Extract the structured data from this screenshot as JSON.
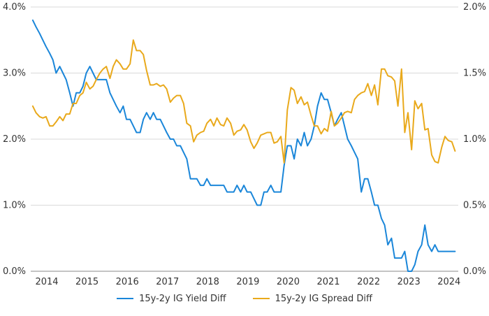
{
  "chart_data": {
    "type": "line",
    "title": "",
    "xlabel": "",
    "ylabel_left": "",
    "ylabel_right": "",
    "x_tick_labels": [
      "2014",
      "2015",
      "2016",
      "2017",
      "2018",
      "2019",
      "2020",
      "2021",
      "2022",
      "2023",
      "2024"
    ],
    "x_range": [
      2013.7,
      2024.33
    ],
    "y_left": {
      "range": [
        0.0,
        4.0
      ],
      "ticks": [
        0.0,
        1.0,
        2.0,
        3.0,
        4.0
      ],
      "tick_labels": [
        "0.0%",
        "1.0%",
        "2.0%",
        "3.0%",
        "4.0%"
      ]
    },
    "y_right": {
      "range": [
        0.0,
        2.0
      ],
      "ticks": [
        0.0,
        0.5,
        1.0,
        1.5,
        2.0
      ],
      "tick_labels": [
        "0.0%",
        "0.5%",
        "1.0%",
        "1.5%",
        "2.0%"
      ]
    },
    "grid": "horizontal",
    "legend_position": "bottom-center",
    "series": [
      {
        "name": "15y-2y IG Yield Diff",
        "axis": "left",
        "color": "#1a86d9",
        "points": [
          [
            2013.75,
            3.8
          ],
          [
            2013.83,
            3.7
          ],
          [
            2013.92,
            3.6
          ],
          [
            2014.0,
            3.5
          ],
          [
            2014.08,
            3.4
          ],
          [
            2014.17,
            3.3
          ],
          [
            2014.25,
            3.2
          ],
          [
            2014.33,
            3.0
          ],
          [
            2014.42,
            3.1
          ],
          [
            2014.5,
            3.0
          ],
          [
            2014.58,
            2.9
          ],
          [
            2014.67,
            2.7
          ],
          [
            2014.75,
            2.5
          ],
          [
            2014.83,
            2.7
          ],
          [
            2014.92,
            2.7
          ],
          [
            2015.0,
            2.8
          ],
          [
            2015.08,
            3.0
          ],
          [
            2015.17,
            3.1
          ],
          [
            2015.25,
            3.0
          ],
          [
            2015.33,
            2.9
          ],
          [
            2015.42,
            2.9
          ],
          [
            2015.5,
            2.9
          ],
          [
            2015.58,
            2.9
          ],
          [
            2015.67,
            2.7
          ],
          [
            2015.75,
            2.6
          ],
          [
            2015.83,
            2.5
          ],
          [
            2015.92,
            2.4
          ],
          [
            2016.0,
            2.5
          ],
          [
            2016.08,
            2.3
          ],
          [
            2016.17,
            2.3
          ],
          [
            2016.25,
            2.2
          ],
          [
            2016.33,
            2.1
          ],
          [
            2016.42,
            2.1
          ],
          [
            2016.5,
            2.3
          ],
          [
            2016.58,
            2.4
          ],
          [
            2016.67,
            2.3
          ],
          [
            2016.75,
            2.4
          ],
          [
            2016.83,
            2.3
          ],
          [
            2016.92,
            2.3
          ],
          [
            2017.0,
            2.2
          ],
          [
            2017.08,
            2.1
          ],
          [
            2017.17,
            2.0
          ],
          [
            2017.25,
            2.0
          ],
          [
            2017.33,
            1.9
          ],
          [
            2017.42,
            1.9
          ],
          [
            2017.5,
            1.8
          ],
          [
            2017.58,
            1.7
          ],
          [
            2017.67,
            1.4
          ],
          [
            2017.75,
            1.4
          ],
          [
            2017.83,
            1.4
          ],
          [
            2017.92,
            1.3
          ],
          [
            2018.0,
            1.3
          ],
          [
            2018.08,
            1.4
          ],
          [
            2018.17,
            1.3
          ],
          [
            2018.25,
            1.3
          ],
          [
            2018.33,
            1.3
          ],
          [
            2018.42,
            1.3
          ],
          [
            2018.5,
            1.3
          ],
          [
            2018.58,
            1.2
          ],
          [
            2018.67,
            1.2
          ],
          [
            2018.75,
            1.2
          ],
          [
            2018.83,
            1.3
          ],
          [
            2018.92,
            1.2
          ],
          [
            2019.0,
            1.3
          ],
          [
            2019.08,
            1.2
          ],
          [
            2019.17,
            1.2
          ],
          [
            2019.25,
            1.1
          ],
          [
            2019.33,
            1.0
          ],
          [
            2019.42,
            1.0
          ],
          [
            2019.5,
            1.2
          ],
          [
            2019.58,
            1.2
          ],
          [
            2019.67,
            1.3
          ],
          [
            2019.75,
            1.2
          ],
          [
            2019.83,
            1.2
          ],
          [
            2019.92,
            1.2
          ],
          [
            2020.0,
            1.6
          ],
          [
            2020.08,
            1.9
          ],
          [
            2020.17,
            1.9
          ],
          [
            2020.25,
            1.7
          ],
          [
            2020.33,
            2.0
          ],
          [
            2020.42,
            1.9
          ],
          [
            2020.5,
            2.1
          ],
          [
            2020.58,
            1.9
          ],
          [
            2020.67,
            2.0
          ],
          [
            2020.75,
            2.2
          ],
          [
            2020.83,
            2.5
          ],
          [
            2020.92,
            2.7
          ],
          [
            2021.0,
            2.6
          ],
          [
            2021.08,
            2.6
          ],
          [
            2021.17,
            2.4
          ],
          [
            2021.25,
            2.2
          ],
          [
            2021.33,
            2.3
          ],
          [
            2021.42,
            2.4
          ],
          [
            2021.5,
            2.2
          ],
          [
            2021.58,
            2.0
          ],
          [
            2021.67,
            1.9
          ],
          [
            2021.75,
            1.8
          ],
          [
            2021.83,
            1.7
          ],
          [
            2021.92,
            1.2
          ],
          [
            2022.0,
            1.4
          ],
          [
            2022.08,
            1.4
          ],
          [
            2022.17,
            1.2
          ],
          [
            2022.25,
            1.0
          ],
          [
            2022.33,
            1.0
          ],
          [
            2022.42,
            0.8
          ],
          [
            2022.5,
            0.7
          ],
          [
            2022.58,
            0.4
          ],
          [
            2022.67,
            0.5
          ],
          [
            2022.75,
            0.2
          ],
          [
            2022.83,
            0.2
          ],
          [
            2022.92,
            0.2
          ],
          [
            2023.0,
            0.3
          ],
          [
            2023.08,
            0.0
          ],
          [
            2023.17,
            0.0
          ],
          [
            2023.25,
            0.1
          ],
          [
            2023.33,
            0.3
          ],
          [
            2023.42,
            0.4
          ],
          [
            2023.5,
            0.7
          ],
          [
            2023.58,
            0.4
          ],
          [
            2023.67,
            0.3
          ],
          [
            2023.75,
            0.4
          ],
          [
            2023.83,
            0.3
          ],
          [
            2023.92,
            0.3
          ],
          [
            2024.0,
            0.3
          ],
          [
            2024.08,
            0.3
          ],
          [
            2024.17,
            0.3
          ],
          [
            2024.25,
            0.3
          ]
        ]
      },
      {
        "name": "15y-2y IG Spread Diff",
        "axis": "right",
        "color": "#e9a91b",
        "points": [
          [
            2013.75,
            1.25
          ],
          [
            2013.83,
            1.2
          ],
          [
            2013.92,
            1.17
          ],
          [
            2014.0,
            1.16
          ],
          [
            2014.08,
            1.17
          ],
          [
            2014.17,
            1.1
          ],
          [
            2014.25,
            1.1
          ],
          [
            2014.33,
            1.13
          ],
          [
            2014.42,
            1.17
          ],
          [
            2014.5,
            1.14
          ],
          [
            2014.58,
            1.19
          ],
          [
            2014.67,
            1.19
          ],
          [
            2014.75,
            1.27
          ],
          [
            2014.83,
            1.27
          ],
          [
            2014.92,
            1.33
          ],
          [
            2015.0,
            1.35
          ],
          [
            2015.08,
            1.43
          ],
          [
            2015.17,
            1.38
          ],
          [
            2015.25,
            1.4
          ],
          [
            2015.33,
            1.45
          ],
          [
            2015.42,
            1.5
          ],
          [
            2015.5,
            1.53
          ],
          [
            2015.58,
            1.55
          ],
          [
            2015.67,
            1.46
          ],
          [
            2015.75,
            1.55
          ],
          [
            2015.83,
            1.6
          ],
          [
            2015.92,
            1.57
          ],
          [
            2016.0,
            1.53
          ],
          [
            2016.08,
            1.53
          ],
          [
            2016.17,
            1.57
          ],
          [
            2016.25,
            1.75
          ],
          [
            2016.33,
            1.67
          ],
          [
            2016.42,
            1.67
          ],
          [
            2016.5,
            1.64
          ],
          [
            2016.58,
            1.52
          ],
          [
            2016.67,
            1.41
          ],
          [
            2016.75,
            1.41
          ],
          [
            2016.83,
            1.42
          ],
          [
            2016.92,
            1.4
          ],
          [
            2017.0,
            1.41
          ],
          [
            2017.08,
            1.38
          ],
          [
            2017.17,
            1.28
          ],
          [
            2017.25,
            1.31
          ],
          [
            2017.33,
            1.33
          ],
          [
            2017.42,
            1.33
          ],
          [
            2017.5,
            1.27
          ],
          [
            2017.58,
            1.12
          ],
          [
            2017.67,
            1.1
          ],
          [
            2017.75,
            0.98
          ],
          [
            2017.83,
            1.03
          ],
          [
            2017.92,
            1.05
          ],
          [
            2018.0,
            1.06
          ],
          [
            2018.08,
            1.12
          ],
          [
            2018.17,
            1.15
          ],
          [
            2018.25,
            1.1
          ],
          [
            2018.33,
            1.16
          ],
          [
            2018.42,
            1.11
          ],
          [
            2018.5,
            1.1
          ],
          [
            2018.58,
            1.16
          ],
          [
            2018.67,
            1.12
          ],
          [
            2018.75,
            1.03
          ],
          [
            2018.83,
            1.06
          ],
          [
            2018.92,
            1.07
          ],
          [
            2019.0,
            1.11
          ],
          [
            2019.08,
            1.07
          ],
          [
            2019.17,
            0.98
          ],
          [
            2019.25,
            0.93
          ],
          [
            2019.33,
            0.97
          ],
          [
            2019.42,
            1.03
          ],
          [
            2019.5,
            1.04
          ],
          [
            2019.58,
            1.05
          ],
          [
            2019.67,
            1.05
          ],
          [
            2019.75,
            0.97
          ],
          [
            2019.83,
            0.98
          ],
          [
            2019.92,
            1.02
          ],
          [
            2020.0,
            0.82
          ],
          [
            2020.08,
            1.22
          ],
          [
            2020.17,
            1.39
          ],
          [
            2020.25,
            1.37
          ],
          [
            2020.33,
            1.27
          ],
          [
            2020.42,
            1.32
          ],
          [
            2020.5,
            1.26
          ],
          [
            2020.58,
            1.28
          ],
          [
            2020.67,
            1.18
          ],
          [
            2020.75,
            1.1
          ],
          [
            2020.83,
            1.1
          ],
          [
            2020.92,
            1.04
          ],
          [
            2021.0,
            1.08
          ],
          [
            2021.08,
            1.06
          ],
          [
            2021.17,
            1.21
          ],
          [
            2021.25,
            1.1
          ],
          [
            2021.33,
            1.12
          ],
          [
            2021.42,
            1.16
          ],
          [
            2021.5,
            1.2
          ],
          [
            2021.58,
            1.21
          ],
          [
            2021.67,
            1.2
          ],
          [
            2021.75,
            1.3
          ],
          [
            2021.83,
            1.33
          ],
          [
            2021.92,
            1.35
          ],
          [
            2022.0,
            1.36
          ],
          [
            2022.08,
            1.42
          ],
          [
            2022.17,
            1.33
          ],
          [
            2022.25,
            1.41
          ],
          [
            2022.33,
            1.26
          ],
          [
            2022.42,
            1.53
          ],
          [
            2022.5,
            1.53
          ],
          [
            2022.58,
            1.48
          ],
          [
            2022.67,
            1.47
          ],
          [
            2022.75,
            1.44
          ],
          [
            2022.83,
            1.25
          ],
          [
            2022.92,
            1.53
          ],
          [
            2023.0,
            1.05
          ],
          [
            2023.08,
            1.2
          ],
          [
            2023.17,
            0.92
          ],
          [
            2023.25,
            1.29
          ],
          [
            2023.33,
            1.23
          ],
          [
            2023.42,
            1.27
          ],
          [
            2023.5,
            1.07
          ],
          [
            2023.58,
            1.08
          ],
          [
            2023.67,
            0.88
          ],
          [
            2023.75,
            0.83
          ],
          [
            2023.83,
            0.82
          ],
          [
            2023.92,
            0.94
          ],
          [
            2024.0,
            1.02
          ],
          [
            2024.08,
            0.99
          ],
          [
            2024.17,
            0.98
          ],
          [
            2024.25,
            0.91
          ]
        ]
      }
    ]
  }
}
